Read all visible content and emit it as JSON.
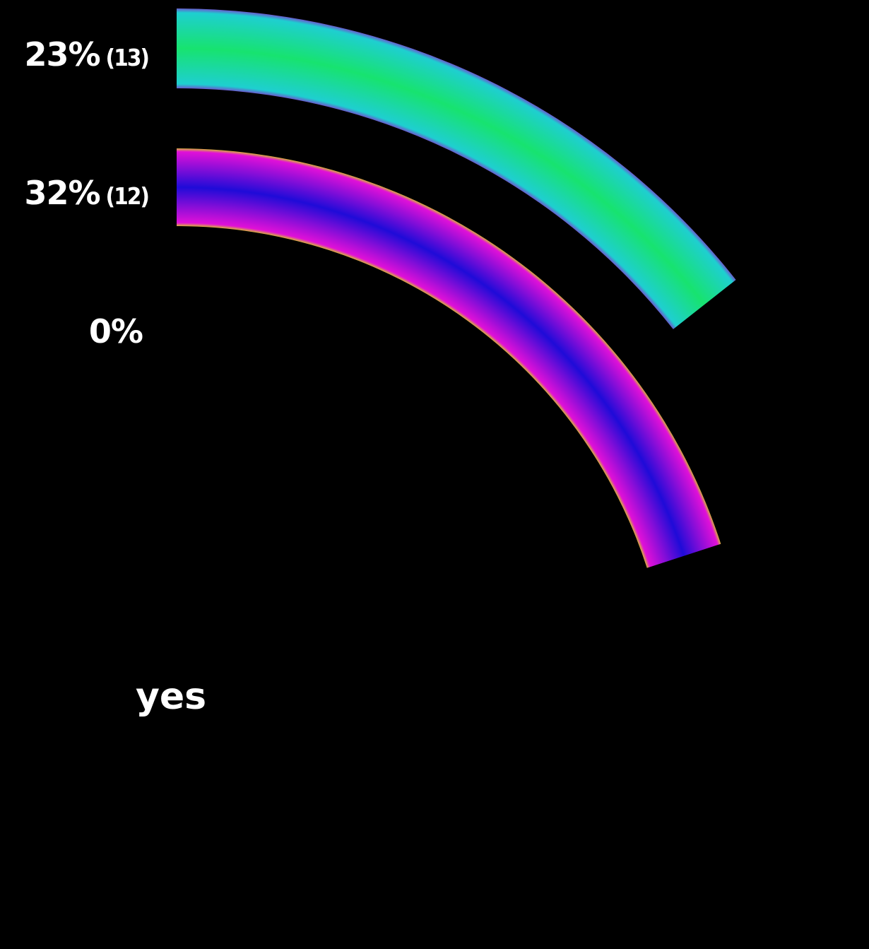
{
  "chart_data": {
    "type": "radial-bar",
    "category": "yes",
    "series": [
      {
        "percent_label": "23%",
        "count_label": "(13)",
        "value": 23,
        "colors": {
          "outer": "#6a5acd",
          "mid": "#17e36f",
          "edge": "#1ecfd0"
        }
      },
      {
        "percent_label": "32%",
        "count_label": "(12)",
        "value": 32,
        "colors": {
          "outer": "#d7b23a",
          "mid": "#1f0bd8",
          "edge": "#e010d8"
        }
      },
      {
        "percent_label": "0%",
        "count_label": "",
        "value": 0
      }
    ]
  }
}
